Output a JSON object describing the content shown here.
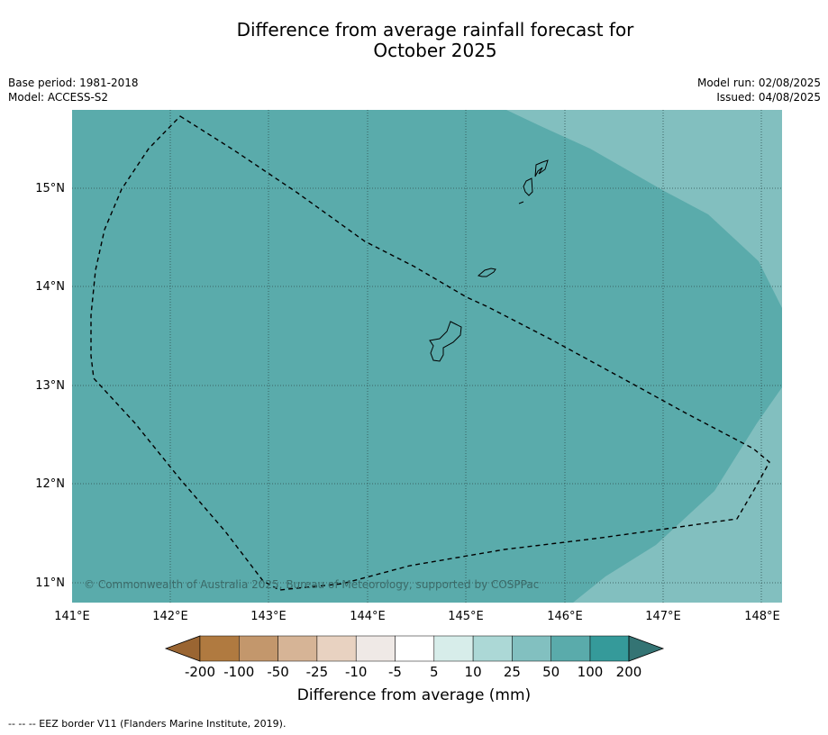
{
  "title": {
    "line1": "Difference from average rainfall forecast for",
    "line2": "October 2025"
  },
  "meta_left": {
    "base_period": "Base period: 1981-2018",
    "model": "Model: ACCESS-S2"
  },
  "meta_right": {
    "model_run": "Model run: 02/08/2025",
    "issued": "Issued: 04/08/2025"
  },
  "map": {
    "lat_labels": [
      "15°N",
      "14°N",
      "13°N",
      "12°N",
      "11°N"
    ],
    "lon_labels": [
      "141°E",
      "142°E",
      "143°E",
      "144°E",
      "145°E",
      "146°E",
      "147°E",
      "148°E"
    ],
    "copyright": "© Commonwealth of Australia 2025, Bureau of Meteorology, supported by COSPPac",
    "fill_colors": {
      "class_50_100": "#5aabab",
      "class_25_50": "#82bfbf"
    }
  },
  "colorbar": {
    "ticks": [
      "-200",
      "-100",
      "-50",
      "-25",
      "-10",
      "-5",
      "5",
      "10",
      "25",
      "50",
      "100",
      "200"
    ],
    "colors": [
      "#9a6532",
      "#b07a40",
      "#c3976c",
      "#d6b496",
      "#e8d2c1",
      "#efe9e6",
      "#ffffff",
      "#d7edea",
      "#acd8d6",
      "#82c0c0",
      "#5aabab",
      "#359a9a",
      "#347474"
    ],
    "label": "Difference from average (mm)"
  },
  "footer": "--  --  -- EEZ border V11 (Flanders Marine Institute, 2019)."
}
